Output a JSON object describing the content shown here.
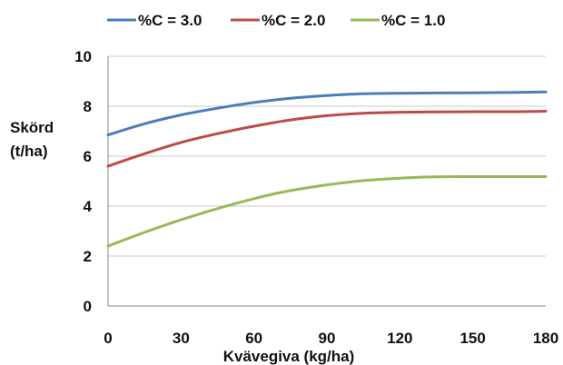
{
  "chart_data": {
    "type": "line",
    "title": "",
    "xlabel": "Kvävegiva (kg/ha)",
    "ylabel_lines": [
      "Skörd",
      "(t/ha)"
    ],
    "xlim": [
      0,
      180
    ],
    "ylim": [
      0,
      10
    ],
    "x_ticks": [
      "0",
      "30",
      "60",
      "90",
      "120",
      "150",
      "180"
    ],
    "y_ticks": [
      "0",
      "2",
      "4",
      "6",
      "8",
      "10"
    ],
    "grid": "horizontal",
    "legend_position": "top",
    "x": [
      0,
      15,
      30,
      45,
      60,
      75,
      90,
      105,
      120,
      135,
      150,
      165,
      180
    ],
    "series": [
      {
        "name": "%C = 3.0",
        "color": "#4a7ebb",
        "values": [
          6.85,
          7.3,
          7.65,
          7.92,
          8.15,
          8.32,
          8.43,
          8.5,
          8.52,
          8.53,
          8.54,
          8.55,
          8.57
        ]
      },
      {
        "name": "%C = 2.0",
        "color": "#be4b48",
        "values": [
          5.6,
          6.1,
          6.55,
          6.9,
          7.2,
          7.45,
          7.62,
          7.72,
          7.76,
          7.77,
          7.78,
          7.78,
          7.8
        ]
      },
      {
        "name": "%C = 1.0",
        "color": "#98b954",
        "values": [
          2.4,
          2.95,
          3.45,
          3.9,
          4.3,
          4.62,
          4.85,
          5.02,
          5.12,
          5.17,
          5.18,
          5.18,
          5.18
        ]
      }
    ]
  }
}
